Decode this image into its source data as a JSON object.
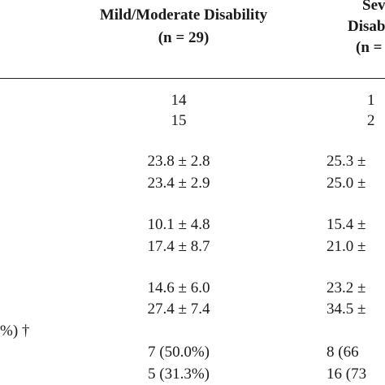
{
  "header": {
    "col1": [
      "Mild/Moderate Disability",
      "(n = 29)"
    ],
    "col2": [
      "Sev",
      "Disab",
      "(n ="
    ]
  },
  "rows": [
    [
      "14",
      "1"
    ],
    [
      "15",
      "2"
    ],
    [
      "23.8 ± 2.8",
      "25.3 ±"
    ],
    [
      "23.4 ± 2.9",
      "25.0 ±"
    ],
    [
      "10.1 ± 4.8",
      "15.4 ±"
    ],
    [
      "17.4 ± 8.7",
      "21.0 ±"
    ],
    [
      "14.6 ± 6.0",
      "23.2 ±"
    ],
    [
      "27.4 ± 7.4",
      "34.5 ±"
    ],
    [
      "7 (50.0%)",
      "8 (66"
    ],
    [
      "5 (31.3%)",
      "16 (73"
    ]
  ],
  "row_label": "%) †"
}
